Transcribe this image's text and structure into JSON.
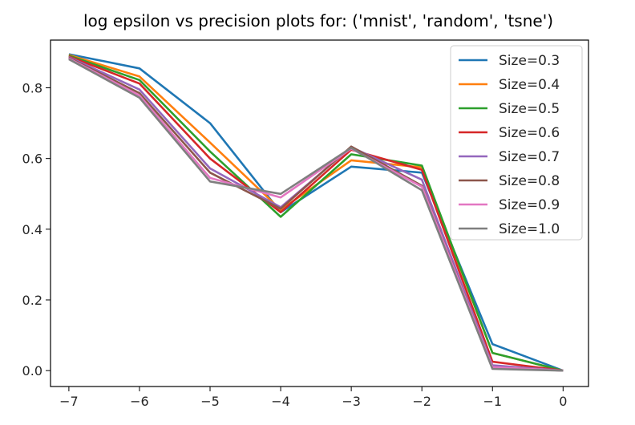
{
  "chart_data": {
    "type": "line",
    "title": "log epsilon vs precision plots for: ('mnist', 'random', 'tsne')",
    "xlabel": "",
    "ylabel": "",
    "x": [
      -7,
      -6,
      -5,
      -4,
      -3,
      -2,
      -1,
      0
    ],
    "x_tick_labels": [
      "−7",
      "−6",
      "−5",
      "−4",
      "−3",
      "−2",
      "−1",
      "0"
    ],
    "y_ticks": [
      0.0,
      0.2,
      0.4,
      0.6,
      0.8
    ],
    "y_tick_labels": [
      "0.0",
      "0.2",
      "0.4",
      "0.6",
      "0.8"
    ],
    "xlim": [
      -7.26,
      0.36
    ],
    "ylim": [
      -0.045,
      0.935
    ],
    "grid": false,
    "legend_position": "top-right",
    "series": [
      {
        "name": "Size=0.3",
        "color": "#1f77b4",
        "values": [
          0.895,
          0.855,
          0.7,
          0.448,
          0.577,
          0.56,
          0.075,
          0.0
        ]
      },
      {
        "name": "Size=0.4",
        "color": "#ff7f0e",
        "values": [
          0.893,
          0.832,
          0.645,
          0.455,
          0.595,
          0.575,
          0.05,
          0.0
        ]
      },
      {
        "name": "Size=0.5",
        "color": "#2ca02c",
        "values": [
          0.891,
          0.822,
          0.62,
          0.435,
          0.612,
          0.58,
          0.05,
          0.0
        ]
      },
      {
        "name": "Size=0.6",
        "color": "#d62728",
        "values": [
          0.889,
          0.812,
          0.6,
          0.448,
          0.625,
          0.568,
          0.025,
          0.0
        ]
      },
      {
        "name": "Size=0.7",
        "color": "#9467bd",
        "values": [
          0.887,
          0.795,
          0.572,
          0.462,
          0.632,
          0.54,
          0.015,
          0.0
        ]
      },
      {
        "name": "Size=0.8",
        "color": "#8c564b",
        "values": [
          0.885,
          0.785,
          0.56,
          0.458,
          0.634,
          0.523,
          0.01,
          0.0
        ]
      },
      {
        "name": "Size=0.9",
        "color": "#e377c2",
        "values": [
          0.883,
          0.778,
          0.545,
          0.49,
          0.628,
          0.52,
          0.01,
          0.0
        ]
      },
      {
        "name": "Size=1.0",
        "color": "#7f7f7f",
        "values": [
          0.881,
          0.772,
          0.535,
          0.5,
          0.63,
          0.51,
          0.005,
          0.0
        ]
      }
    ]
  }
}
